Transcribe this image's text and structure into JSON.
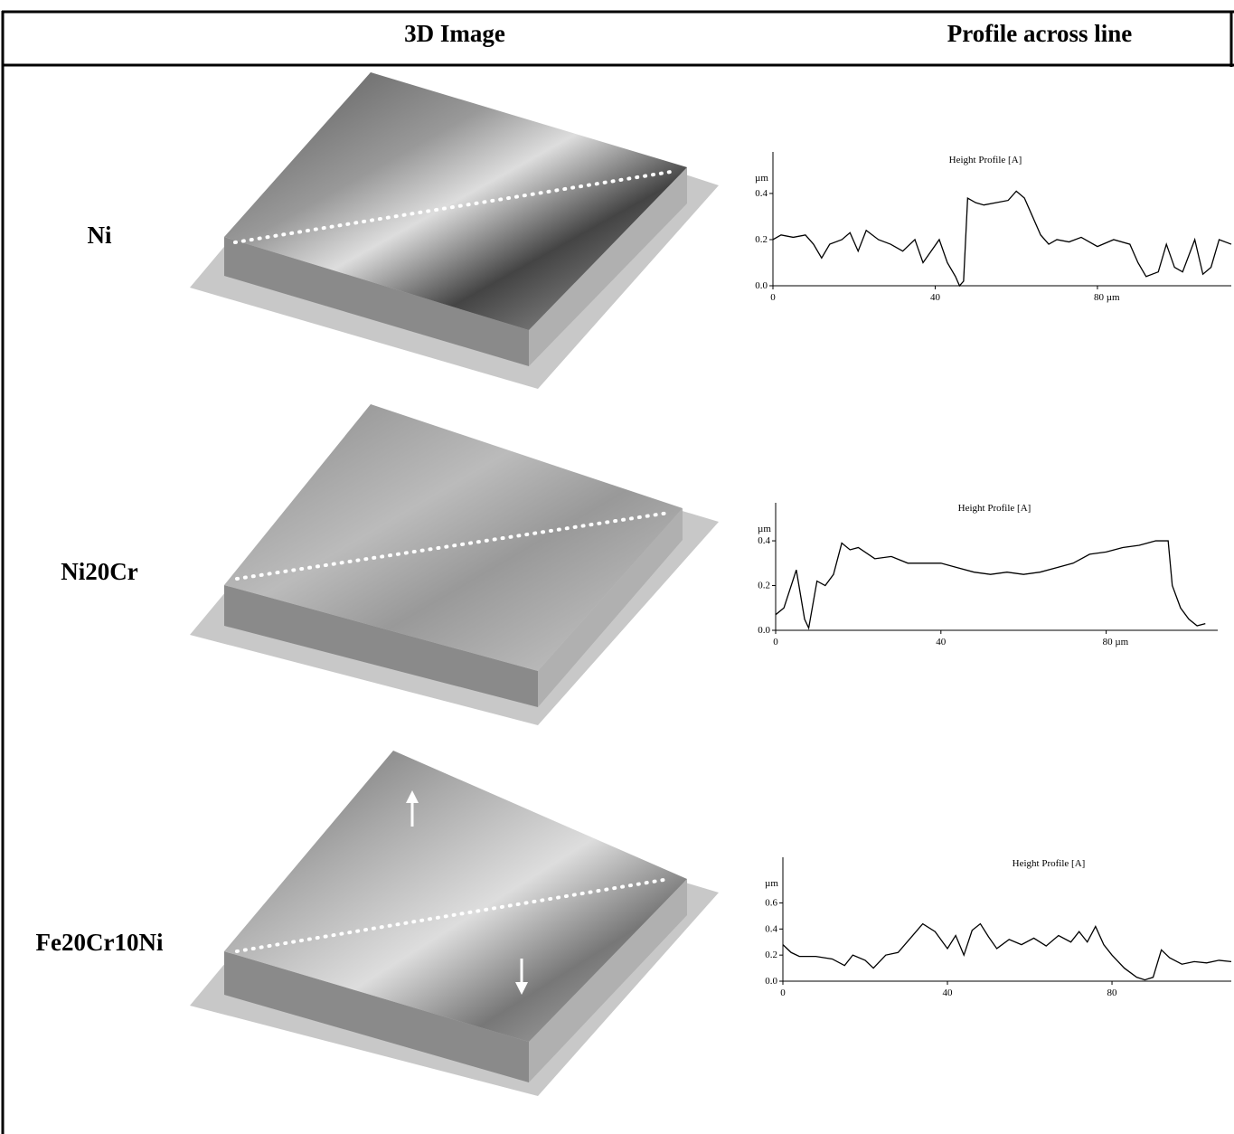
{
  "table": {
    "headers": [
      "3D Image",
      "Profile across line"
    ]
  },
  "rows": [
    {
      "label": "Ni",
      "profile": {
        "type": "line",
        "title": "Height Profile [A]",
        "y_label": "µm",
        "xlim": [
          0,
          113
        ],
        "ylim": [
          0,
          0.58
        ],
        "xticks": [
          0,
          40,
          {
            "value": 80,
            "label": "80 µm"
          }
        ],
        "yticks": [
          {
            "value": 0,
            "label": "0.0"
          },
          0.2,
          0.4
        ],
        "x": [
          0,
          2,
          5,
          8,
          10,
          12,
          14,
          17,
          19,
          21,
          23,
          26,
          29,
          32,
          35,
          37,
          39,
          41,
          43,
          45,
          46,
          47,
          48,
          50,
          52,
          55,
          58,
          60,
          62,
          64,
          66,
          68,
          70,
          73,
          76,
          80,
          84,
          88,
          90,
          92,
          95,
          97,
          99,
          101,
          104,
          106,
          108,
          110,
          113
        ],
        "values": [
          0.2,
          0.22,
          0.21,
          0.22,
          0.18,
          0.12,
          0.18,
          0.2,
          0.23,
          0.15,
          0.24,
          0.2,
          0.18,
          0.15,
          0.2,
          0.1,
          0.15,
          0.2,
          0.1,
          0.04,
          0.0,
          0.02,
          0.38,
          0.36,
          0.35,
          0.36,
          0.37,
          0.41,
          0.38,
          0.3,
          0.22,
          0.18,
          0.2,
          0.19,
          0.21,
          0.17,
          0.2,
          0.18,
          0.1,
          0.04,
          0.06,
          0.18,
          0.08,
          0.06,
          0.2,
          0.05,
          0.08,
          0.2,
          0.18
        ]
      }
    },
    {
      "label": "Ni20Cr",
      "profile": {
        "type": "line",
        "title": "Height Profile [A]",
        "y_label": "µm",
        "xlim": [
          0,
          107
        ],
        "ylim": [
          0,
          0.57
        ],
        "xticks": [
          0,
          40,
          {
            "value": 80,
            "label": "80 µm"
          }
        ],
        "yticks": [
          {
            "value": 0,
            "label": "0.0"
          },
          0.2,
          0.4
        ],
        "x": [
          0,
          2,
          5,
          7,
          8,
          10,
          12,
          14,
          16,
          18,
          20,
          24,
          28,
          32,
          36,
          40,
          44,
          48,
          52,
          56,
          60,
          64,
          68,
          72,
          76,
          80,
          84,
          88,
          92,
          95,
          96,
          98,
          100,
          102,
          104
        ],
        "values": [
          0.07,
          0.1,
          0.27,
          0.05,
          0.01,
          0.22,
          0.2,
          0.25,
          0.39,
          0.36,
          0.37,
          0.32,
          0.33,
          0.3,
          0.3,
          0.3,
          0.28,
          0.26,
          0.25,
          0.26,
          0.25,
          0.26,
          0.28,
          0.3,
          0.34,
          0.35,
          0.37,
          0.38,
          0.4,
          0.4,
          0.2,
          0.1,
          0.05,
          0.02,
          0.03
        ]
      }
    },
    {
      "label": "Fe20Cr10Ni",
      "profile": {
        "type": "line",
        "title": "Height Profile [A]",
        "y_label": "µm",
        "xlim": [
          0,
          109
        ],
        "ylim": [
          0,
          0.95
        ],
        "xticks": [
          0,
          40,
          80
        ],
        "yticks": [
          {
            "value": 0,
            "label": "0.0"
          },
          0.2,
          0.4,
          0.6
        ],
        "x": [
          0,
          2,
          4,
          8,
          12,
          15,
          17,
          20,
          22,
          25,
          28,
          31,
          34,
          37,
          40,
          42,
          44,
          46,
          48,
          50,
          52,
          55,
          58,
          61,
          64,
          67,
          70,
          72,
          74,
          76,
          78,
          80,
          83,
          86,
          88,
          90,
          92,
          94,
          97,
          100,
          103,
          106,
          109
        ],
        "values": [
          0.28,
          0.22,
          0.19,
          0.19,
          0.17,
          0.12,
          0.2,
          0.16,
          0.1,
          0.2,
          0.22,
          0.33,
          0.44,
          0.38,
          0.25,
          0.35,
          0.2,
          0.39,
          0.44,
          0.34,
          0.25,
          0.32,
          0.28,
          0.33,
          0.27,
          0.35,
          0.3,
          0.38,
          0.3,
          0.42,
          0.28,
          0.2,
          0.1,
          0.03,
          0.01,
          0.03,
          0.24,
          0.18,
          0.13,
          0.15,
          0.14,
          0.16,
          0.15
        ]
      }
    }
  ]
}
